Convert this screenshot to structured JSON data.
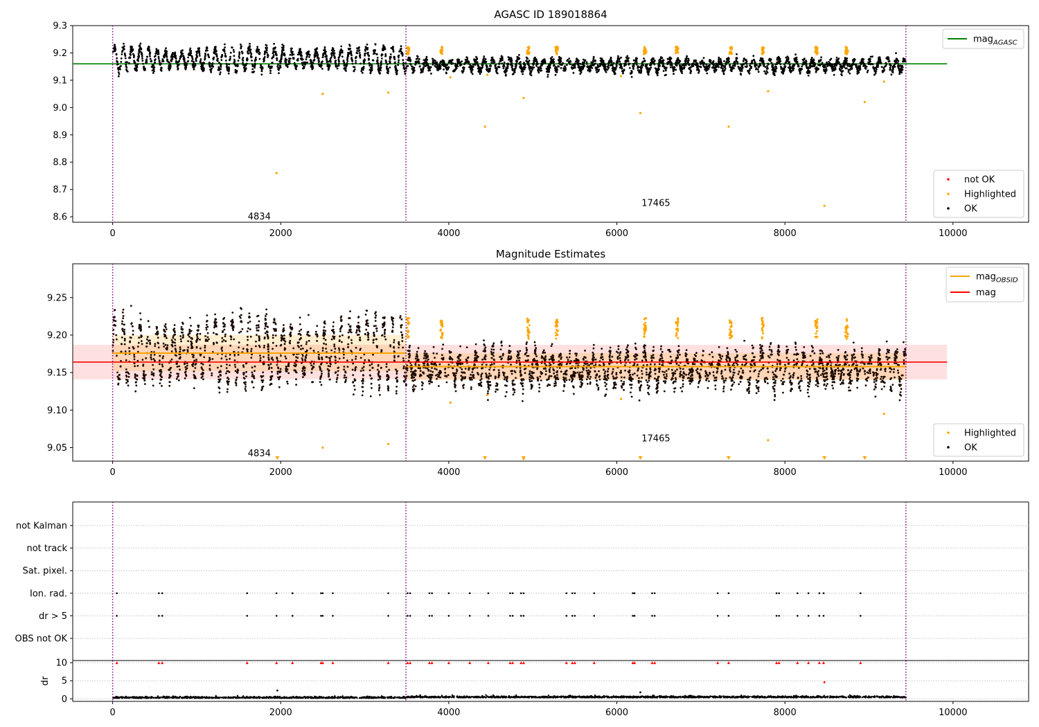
{
  "figure": {
    "panels": [
      {
        "id": "top",
        "type": "scatter",
        "title": "AGASC ID 189018864",
        "xlim": [
          -475,
          10900
        ],
        "ylim": [
          8.58,
          9.3
        ],
        "x_ticks": [
          0,
          2000,
          4000,
          6000,
          8000,
          10000
        ],
        "x_tick_labels": [
          "0",
          "2000",
          "4000",
          "6000",
          "8000",
          "10000"
        ],
        "y_ticks": [
          8.6,
          8.7,
          8.8,
          8.9,
          9.0,
          9.1,
          9.2,
          9.3
        ],
        "y_tick_labels": [
          "8.6",
          "8.7",
          "8.8",
          "8.9",
          "9.0",
          "9.1",
          "9.2",
          "9.3"
        ],
        "obsid_boundaries": [
          0,
          3490,
          9440
        ],
        "obsid_labels": [
          {
            "text": "4834",
            "x": 1745,
            "y": 8.6
          },
          {
            "text": "17465",
            "x": 6465,
            "y": 8.65
          }
        ],
        "reference_lines": [
          {
            "name": "mag_AGASC",
            "y": 9.16,
            "x": [
              -475,
              9930
            ],
            "color": "#008000"
          }
        ],
        "segments": [
          {
            "obsid": "4834",
            "x": [
              0,
              3490
            ],
            "base": 9.178,
            "amplitude": 0.035,
            "noise": 0.008
          },
          {
            "obsid": "17465",
            "x": [
              3490,
              9440
            ],
            "base": 9.155,
            "amplitude": 0.018,
            "noise": 0.008
          }
        ],
        "highlighted_points": [
          {
            "x": 1950,
            "y": 8.76
          },
          {
            "x": 2500,
            "y": 9.05
          },
          {
            "x": 3280,
            "y": 9.055
          },
          {
            "x": 4430,
            "y": 8.93
          },
          {
            "x": 4890,
            "y": 9.035
          },
          {
            "x": 6280,
            "y": 8.98
          },
          {
            "x": 7330,
            "y": 8.93
          },
          {
            "x": 7800,
            "y": 9.06
          },
          {
            "x": 8470,
            "y": 8.64
          },
          {
            "x": 8950,
            "y": 9.02
          },
          {
            "x": 9180,
            "y": 9.095
          },
          {
            "x": 4020,
            "y": 9.11
          },
          {
            "x": 4460,
            "y": 9.12
          },
          {
            "x": 6050,
            "y": 9.115
          }
        ],
        "highlighted_clusters": [
          3500,
          3900,
          4930,
          5270,
          6320,
          6700,
          7340,
          7720,
          8360,
          8720
        ],
        "legend_upper": [
          {
            "label": "mag",
            "subscript": "AGASC",
            "color": "#008000"
          }
        ],
        "legend_lower": [
          {
            "label": "not OK",
            "color": "#ff0000"
          },
          {
            "label": "Highlighted",
            "color": "#ffa500"
          },
          {
            "label": "OK",
            "color": "#000000"
          }
        ]
      },
      {
        "id": "middle",
        "type": "scatter",
        "title": "Magnitude Estimates",
        "xlim": [
          -475,
          10900
        ],
        "ylim": [
          9.032,
          9.295
        ],
        "x_ticks": [
          0,
          2000,
          4000,
          6000,
          8000,
          10000
        ],
        "x_tick_labels": [
          "0",
          "2000",
          "4000",
          "6000",
          "8000",
          "10000"
        ],
        "y_ticks": [
          9.05,
          9.1,
          9.15,
          9.2,
          9.25
        ],
        "y_tick_labels": [
          "9.05",
          "9.10",
          "9.15",
          "9.20",
          "9.25"
        ],
        "obsid_boundaries": [
          0,
          3490,
          9440
        ],
        "obsid_labels": [
          {
            "text": "4834",
            "x": 1745,
            "y": 9.042
          },
          {
            "text": "17465",
            "x": 6465,
            "y": 9.062
          }
        ],
        "mag_band": {
          "y": 9.164,
          "low": 9.141,
          "high": 9.187,
          "x": [
            -475,
            9930
          ],
          "color": "#ff0000"
        },
        "obsid_mags": [
          {
            "obsid": "4834",
            "x": [
              0,
              3490
            ],
            "y": 9.176,
            "low": 9.152,
            "high": 9.2
          },
          {
            "obsid": "17465",
            "x": [
              3490,
              9440
            ],
            "y": 9.158,
            "low": 9.14,
            "high": 9.176
          }
        ],
        "low_markers_x": [
          1960,
          4430,
          4890,
          6280,
          7330,
          8470,
          8950
        ],
        "legend_upper": [
          {
            "label": "mag",
            "subscript": "OBSID",
            "color": "#ffa500"
          },
          {
            "label": "mag",
            "subscript": "",
            "color": "#ff0000"
          }
        ],
        "legend_lower": [
          {
            "label": "Highlighted",
            "color": "#ffa500"
          },
          {
            "label": "OK",
            "color": "#000000"
          }
        ]
      },
      {
        "id": "flags",
        "type": "scatter",
        "xlim": [
          -475,
          10900
        ],
        "rows": [
          "not Kalman",
          "not track",
          "Sat. pixel.",
          "Ion. rad.",
          "dr > 5",
          "OBS not OK"
        ],
        "flag_rows_used": [
          "Ion. rad.",
          "dr > 5"
        ],
        "flag_x": [
          50,
          550,
          590,
          1600,
          1950,
          2140,
          2480,
          2500,
          2620,
          3280,
          3510,
          3540,
          3770,
          3800,
          4000,
          4250,
          4470,
          4730,
          4760,
          4860,
          4890,
          5400,
          5470,
          5500,
          5730,
          6190,
          6210,
          6420,
          6450,
          7200,
          7330,
          7900,
          7930,
          8150,
          8280,
          8410,
          8460,
          8900
        ]
      },
      {
        "id": "dr",
        "type": "scatter",
        "ylabel": "dr",
        "xlim": [
          -475,
          10900
        ],
        "ylim": [
          -0.7,
          10.6
        ],
        "x_ticks": [
          0,
          2000,
          4000,
          6000,
          8000,
          10000
        ],
        "x_tick_labels": [
          "0",
          "2000",
          "4000",
          "6000",
          "8000",
          "10000"
        ],
        "y_ticks": [
          0,
          5,
          10
        ],
        "y_tick_labels": [
          "0",
          "5",
          "10"
        ],
        "obsid_boundaries": [
          0,
          3490,
          9440
        ],
        "clipped_marker_y": 10,
        "extra_points": [
          {
            "x": 1960,
            "y": 2.3,
            "color": "#000000"
          },
          {
            "x": 6280,
            "y": 1.8,
            "color": "#000000"
          },
          {
            "x": 8470,
            "y": 4.6,
            "color": "#ff0000"
          }
        ]
      }
    ]
  }
}
